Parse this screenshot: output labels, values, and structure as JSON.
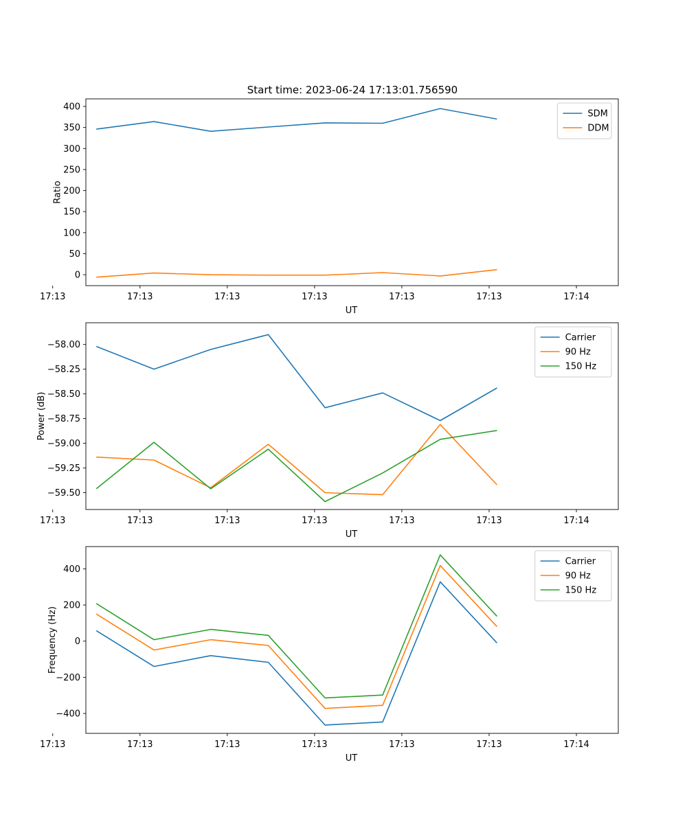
{
  "title": "Start time: 2023-06-24 17:13:01.756590",
  "chart_data": [
    {
      "type": "line",
      "xlabel": "UT",
      "ylabel": "Ratio",
      "x_tick_labels": [
        "17:13",
        "17:13",
        "17:13",
        "17:13",
        "17:13",
        "17:13",
        "17:14"
      ],
      "yticks": [
        0,
        50,
        100,
        150,
        200,
        250,
        300,
        350,
        400
      ],
      "ylim": [
        -26,
        418
      ],
      "x": [
        0.5,
        1.16,
        1.81,
        2.47,
        3.12,
        3.78,
        4.44,
        5.09
      ],
      "legend_position": "top-right",
      "grid": false,
      "series": [
        {
          "name": "SDM",
          "color": "#1f77b4",
          "values": [
            346,
            364,
            341,
            351,
            361,
            360,
            395,
            370
          ]
        },
        {
          "name": "DDM",
          "color": "#ff7f0e",
          "values": [
            -6,
            4,
            0,
            -1,
            -1,
            5,
            -3,
            12
          ]
        }
      ]
    },
    {
      "type": "line",
      "xlabel": "UT",
      "ylabel": "Power (dB)",
      "x_tick_labels": [
        "17:13",
        "17:13",
        "17:13",
        "17:13",
        "17:13",
        "17:13",
        "17:14"
      ],
      "yticks": [
        -59.5,
        -59.25,
        -59.0,
        -58.75,
        -58.5,
        -58.25,
        -58.0
      ],
      "ytick_labels": [
        "−59.50",
        "−59.25",
        "−59.00",
        "−58.75",
        "−58.50",
        "−58.25",
        "−58.00"
      ],
      "ylim": [
        -59.67,
        -57.78
      ],
      "x": [
        0.5,
        1.16,
        1.81,
        2.47,
        3.12,
        3.78,
        4.44,
        5.09
      ],
      "legend_position": "top-right",
      "grid": false,
      "series": [
        {
          "name": "Carrier",
          "color": "#1f77b4",
          "values": [
            -58.02,
            -58.25,
            -58.05,
            -57.9,
            -58.64,
            -58.49,
            -58.77,
            -58.44
          ]
        },
        {
          "name": "90 Hz",
          "color": "#ff7f0e",
          "values": [
            -59.14,
            -59.17,
            -59.45,
            -59.01,
            -59.5,
            -59.52,
            -58.81,
            -59.42
          ]
        },
        {
          "name": "150 Hz",
          "color": "#2ca02c",
          "values": [
            -59.46,
            -58.99,
            -59.46,
            -59.06,
            -59.59,
            -59.3,
            -58.96,
            -58.87
          ]
        }
      ]
    },
    {
      "type": "line",
      "xlabel": "UT",
      "ylabel": "Frequency (Hz)",
      "x_tick_labels": [
        "17:13",
        "17:13",
        "17:13",
        "17:13",
        "17:13",
        "17:13",
        "17:14"
      ],
      "yticks": [
        -400,
        -200,
        0,
        200,
        400
      ],
      "ytick_labels": [
        "−400",
        "−200",
        "0",
        "200",
        "400"
      ],
      "ylim": [
        -510,
        523
      ],
      "x": [
        0.5,
        1.16,
        1.81,
        2.47,
        3.12,
        3.78,
        4.44,
        5.09
      ],
      "legend_position": "top-right",
      "grid": false,
      "series": [
        {
          "name": "Carrier",
          "color": "#1f77b4",
          "values": [
            58,
            -140,
            -80,
            -117,
            -464,
            -447,
            328,
            -10
          ]
        },
        {
          "name": "90 Hz",
          "color": "#ff7f0e",
          "values": [
            150,
            -49,
            8,
            -24,
            -372,
            -355,
            418,
            80
          ]
        },
        {
          "name": "150 Hz",
          "color": "#2ca02c",
          "values": [
            208,
            8,
            65,
            32,
            -314,
            -298,
            477,
            137
          ]
        }
      ]
    }
  ]
}
